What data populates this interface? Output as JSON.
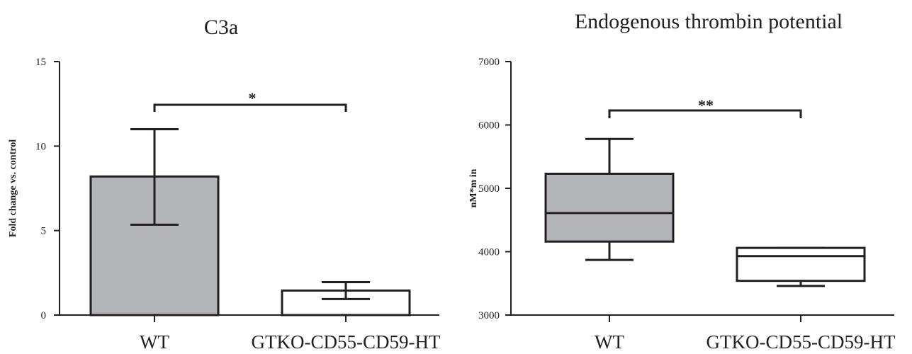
{
  "chart_data": [
    {
      "type": "bar",
      "title": "C3a",
      "xlabel": "",
      "ylabel": "Fold change vs. control",
      "categories": [
        "WT",
        "GTKO-CD55-CD59-HT"
      ],
      "values": [
        8.2,
        1.45
      ],
      "error_low": [
        5.35,
        0.95
      ],
      "error_high": [
        11.0,
        1.95
      ],
      "fill_colors": [
        "#b3b4b7",
        "#ffffff"
      ],
      "ylim": [
        0,
        15
      ],
      "yticks": [
        "0",
        "5",
        "10",
        "15"
      ],
      "significance": "*",
      "grid": false
    },
    {
      "type": "box",
      "title": "Endogenous thrombin potential",
      "xlabel": "",
      "ylabel": "nM*m in",
      "categories": [
        "WT",
        "GTKO-CD55-CD59-HT"
      ],
      "boxes": [
        {
          "whisker_low": 3870,
          "q1": 4160,
          "median": 4610,
          "q3": 5230,
          "whisker_high": 5780
        },
        {
          "whisker_low": 3460,
          "q1": 3540,
          "median": 3930,
          "q3": 4060,
          "whisker_high": 4060
        }
      ],
      "fill_colors": [
        "#b3b4b7",
        "#ffffff"
      ],
      "ylim": [
        3000,
        7000
      ],
      "yticks": [
        "3000",
        "4000",
        "5000",
        "6000",
        "7000"
      ],
      "significance": "**",
      "grid": false
    }
  ],
  "colors": {
    "ink": "#231f20"
  }
}
